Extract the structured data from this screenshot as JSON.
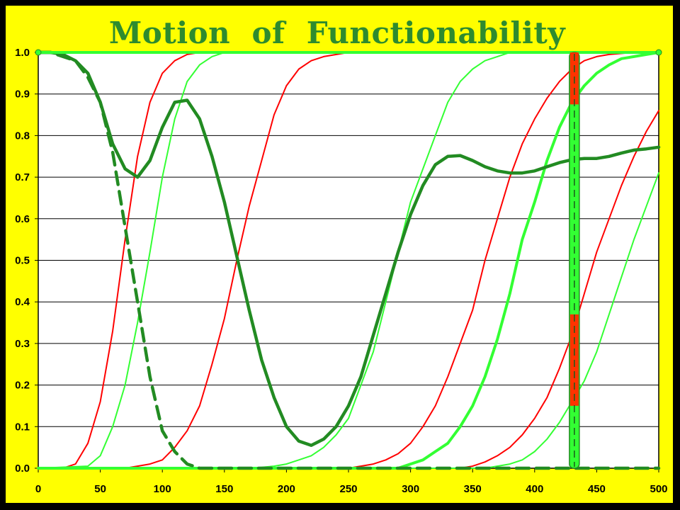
{
  "chart_data": {
    "type": "line",
    "title": "Motion  of  Functionability",
    "xlabel": "",
    "ylabel": "",
    "xlim": [
      0,
      500
    ],
    "ylim": [
      0,
      1
    ],
    "x_ticks": [
      "0",
      "50",
      "100",
      "150",
      "200",
      "250",
      "300",
      "350",
      "400",
      "450",
      "500"
    ],
    "y_ticks": [
      "0.0",
      "0.1",
      "0.2",
      "0.3",
      "0.4",
      "0.5",
      "0.6",
      "0.7",
      "0.8",
      "0.9",
      "1.0"
    ],
    "grid": "horizontal",
    "legend": "none",
    "background_color": "#ffff00",
    "plot_background_color": "#ffffff",
    "series": [
      {
        "color": "#ff0000",
        "style": "thin",
        "x": [
          0,
          20,
          30,
          40,
          50,
          60,
          70,
          80,
          90,
          100,
          110,
          120,
          130,
          150
        ],
        "y": [
          0,
          0,
          0.01,
          0.06,
          0.16,
          0.33,
          0.55,
          0.75,
          0.88,
          0.95,
          0.98,
          0.995,
          1,
          1
        ]
      },
      {
        "color": "#33ff33",
        "style": "thin",
        "x": [
          0,
          40,
          50,
          60,
          70,
          80,
          90,
          100,
          110,
          120,
          130,
          140,
          150,
          160
        ],
        "y": [
          0,
          0.005,
          0.03,
          0.1,
          0.2,
          0.35,
          0.52,
          0.7,
          0.84,
          0.93,
          0.97,
          0.99,
          1,
          1
        ]
      },
      {
        "color": "#ff0000",
        "style": "thin",
        "x": [
          0,
          70,
          80,
          90,
          100,
          110,
          120,
          130,
          140,
          150,
          160,
          170,
          180,
          190,
          200,
          210,
          220,
          230,
          250,
          270
        ],
        "y": [
          0,
          0,
          0.005,
          0.01,
          0.02,
          0.05,
          0.09,
          0.15,
          0.25,
          0.36,
          0.5,
          0.63,
          0.74,
          0.85,
          0.92,
          0.96,
          0.98,
          0.99,
          1,
          1
        ]
      },
      {
        "color": "#33ff33",
        "style": "thin",
        "x": [
          0,
          170,
          180,
          190,
          200,
          210,
          220,
          230,
          240,
          250,
          260,
          270,
          280,
          290,
          300,
          310,
          320,
          330,
          340,
          350,
          360,
          370,
          380,
          400,
          420
        ],
        "y": [
          0,
          0,
          0.002,
          0.005,
          0.01,
          0.02,
          0.03,
          0.05,
          0.08,
          0.12,
          0.2,
          0.28,
          0.4,
          0.52,
          0.64,
          0.72,
          0.8,
          0.88,
          0.93,
          0.96,
          0.98,
          0.99,
          1,
          1,
          1
        ]
      },
      {
        "color": "#ff0000",
        "style": "thin",
        "x": [
          0,
          250,
          260,
          270,
          280,
          290,
          300,
          310,
          320,
          330,
          340,
          350,
          360,
          370,
          380,
          390,
          400,
          410,
          420,
          430,
          440,
          450,
          460,
          480,
          500
        ],
        "y": [
          0,
          0,
          0.005,
          0.01,
          0.02,
          0.035,
          0.06,
          0.1,
          0.15,
          0.22,
          0.3,
          0.38,
          0.5,
          0.6,
          0.7,
          0.78,
          0.84,
          0.89,
          0.93,
          0.96,
          0.98,
          0.99,
          0.995,
          1,
          1
        ]
      },
      {
        "color": "#33ff33",
        "style": "thick",
        "x": [
          0,
          290,
          300,
          310,
          320,
          330,
          340,
          350,
          360,
          370,
          380,
          390,
          400,
          410,
          420,
          430,
          440,
          450,
          460,
          470,
          480,
          490,
          500
        ],
        "y": [
          0,
          0,
          0.01,
          0.02,
          0.04,
          0.06,
          0.1,
          0.15,
          0.22,
          0.31,
          0.42,
          0.55,
          0.64,
          0.74,
          0.82,
          0.88,
          0.92,
          0.95,
          0.97,
          0.985,
          0.99,
          0.995,
          1
        ]
      },
      {
        "color": "#ff0000",
        "style": "thin",
        "x": [
          0,
          340,
          350,
          360,
          370,
          380,
          390,
          400,
          410,
          420,
          430,
          440,
          450,
          460,
          470,
          480,
          490,
          500
        ],
        "y": [
          0,
          0,
          0.005,
          0.015,
          0.03,
          0.05,
          0.08,
          0.12,
          0.17,
          0.24,
          0.32,
          0.42,
          0.52,
          0.6,
          0.68,
          0.75,
          0.81,
          0.86
        ]
      },
      {
        "color": "#33ff33",
        "style": "thin",
        "x": [
          0,
          360,
          370,
          380,
          390,
          400,
          410,
          420,
          430,
          440,
          450,
          460,
          470,
          480,
          490,
          500
        ],
        "y": [
          0,
          0,
          0.005,
          0.01,
          0.02,
          0.04,
          0.07,
          0.11,
          0.16,
          0.21,
          0.28,
          0.37,
          0.46,
          0.55,
          0.63,
          0.71
        ]
      },
      {
        "color": "#228b22",
        "style": "bold",
        "x": [
          0,
          10,
          20,
          30,
          40,
          50,
          60,
          70,
          80,
          90,
          100,
          110,
          120,
          130,
          140,
          150,
          160,
          170,
          180,
          190,
          200,
          210,
          220,
          230,
          240,
          250,
          260,
          270,
          280,
          290,
          300,
          310,
          320,
          330,
          340,
          350,
          360,
          370,
          380,
          390,
          400,
          410,
          420,
          430,
          440,
          450,
          460,
          470,
          480,
          490,
          500
        ],
        "y": [
          1,
          1,
          0.995,
          0.98,
          0.95,
          0.88,
          0.78,
          0.72,
          0.7,
          0.74,
          0.82,
          0.88,
          0.885,
          0.84,
          0.75,
          0.64,
          0.51,
          0.38,
          0.26,
          0.17,
          0.1,
          0.065,
          0.055,
          0.07,
          0.1,
          0.15,
          0.22,
          0.32,
          0.42,
          0.52,
          0.61,
          0.68,
          0.73,
          0.75,
          0.752,
          0.74,
          0.725,
          0.715,
          0.71,
          0.71,
          0.715,
          0.725,
          0.735,
          0.742,
          0.745,
          0.745,
          0.75,
          0.758,
          0.765,
          0.768,
          0.772
        ]
      },
      {
        "color": "#228b22",
        "style": "dashed",
        "x": [
          0,
          10,
          20,
          30,
          40,
          50,
          60,
          70,
          80,
          90,
          100,
          110,
          120,
          130,
          150,
          200,
          250,
          300,
          350,
          400,
          450,
          500
        ],
        "y": [
          1,
          1,
          0.99,
          0.98,
          0.94,
          0.88,
          0.76,
          0.58,
          0.4,
          0.22,
          0.09,
          0.04,
          0.01,
          0,
          0,
          0,
          0,
          0,
          0,
          0,
          0,
          0
        ]
      },
      {
        "color": "#33ff33",
        "style": "thick",
        "x": [
          0,
          500
        ],
        "y": [
          1,
          1
        ]
      }
    ],
    "marker": {
      "x": 432,
      "bar_color": "#33ff33",
      "highlight_color": "#ff3300",
      "highlight_ranges": [
        [
          0.15,
          0.37
        ],
        [
          0.875,
          1.0
        ]
      ]
    }
  }
}
